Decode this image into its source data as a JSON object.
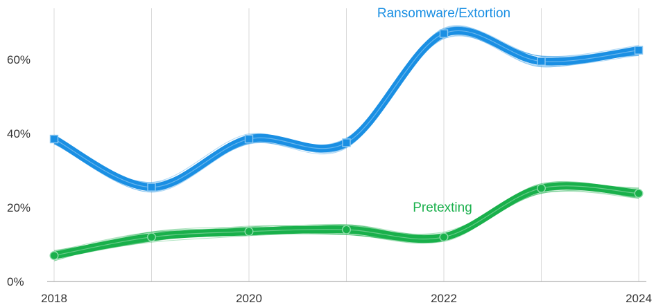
{
  "chart_data": {
    "type": "line",
    "title": "",
    "xlabel": "",
    "ylabel": "",
    "x": [
      2018,
      2019,
      2020,
      2021,
      2022,
      2023,
      2024
    ],
    "x_tick_labels": [
      "2018",
      "2020",
      "2022",
      "2024"
    ],
    "y_tick_labels": [
      "0%",
      "20%",
      "40%",
      "60%"
    ],
    "xlim": [
      2018,
      2024
    ],
    "ylim": [
      0,
      0.7
    ],
    "grid": "vertical",
    "legend": "inline labels",
    "series": [
      {
        "name": "Ransomware/Extortion",
        "color": "#1a8fe3",
        "values": [
          0.385,
          0.255,
          0.385,
          0.375,
          0.67,
          0.595,
          0.625
        ],
        "marker": "square"
      },
      {
        "name": "Pretexting",
        "color": "#19b04b",
        "values": [
          0.07,
          0.12,
          0.135,
          0.14,
          0.12,
          0.252,
          0.238
        ],
        "marker": "circle"
      }
    ]
  }
}
